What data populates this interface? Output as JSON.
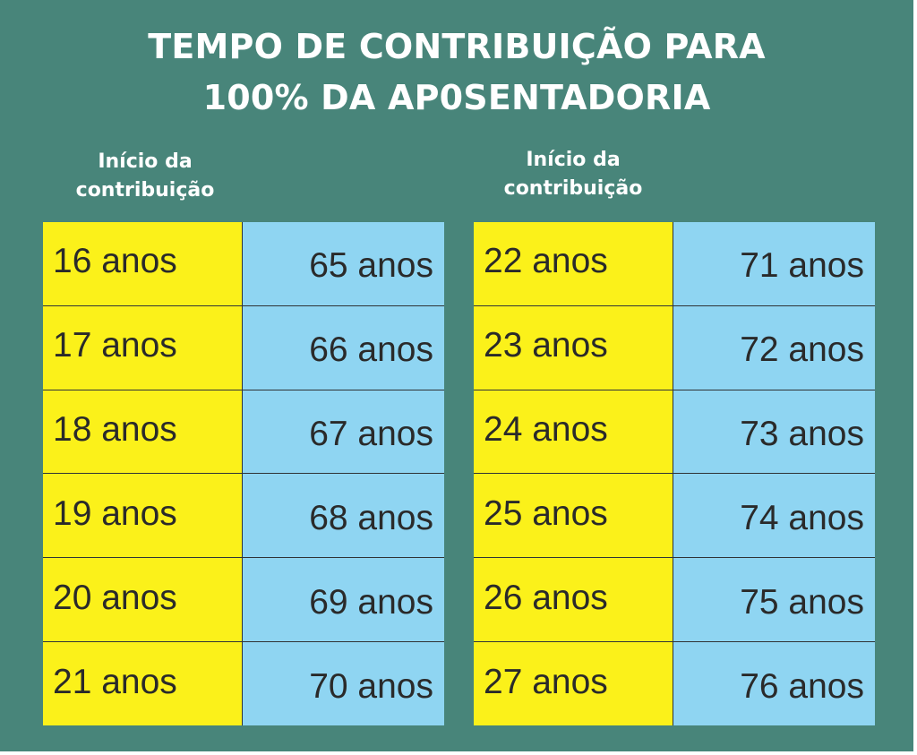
{
  "title": {
    "line1": "TEMPO DE CONTRIBUIÇÃO PARA",
    "line2": "100% DA AP0SENTADORIA"
  },
  "left_table": {
    "header_line1": "Início da",
    "header_line2": "contribuição",
    "rows": [
      {
        "start": "16 anos",
        "end": "65 anos"
      },
      {
        "start": "17 anos",
        "end": "66 anos"
      },
      {
        "start": "18 anos",
        "end": "67 anos"
      },
      {
        "start": "19 anos",
        "end": "68 anos"
      },
      {
        "start": "20 anos",
        "end": "69 anos"
      },
      {
        "start": "21 anos",
        "end": "70 anos"
      }
    ]
  },
  "right_table": {
    "header_line1": "Início da",
    "header_line2": "contribuição",
    "rows": [
      {
        "start": "22 anos",
        "end": "71 anos"
      },
      {
        "start": "23 anos",
        "end": "72 anos"
      },
      {
        "start": "24 anos",
        "end": "73 anos"
      },
      {
        "start": "25 anos",
        "end": "74 anos"
      },
      {
        "start": "26 anos",
        "end": "75 anos"
      },
      {
        "start": "27 anos",
        "end": "76 anos"
      }
    ]
  },
  "colors": {
    "background": "#48857a",
    "start_column": "#fbf11a",
    "end_column": "#8fd5f2",
    "title_text": "#ffffff",
    "cell_text": "#2a2a2a"
  }
}
